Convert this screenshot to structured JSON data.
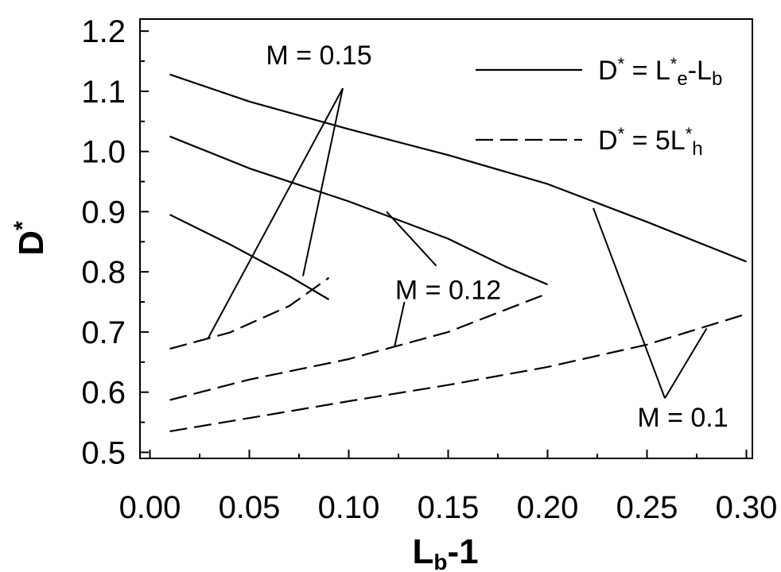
{
  "chart_data": {
    "type": "line",
    "title": "",
    "xlabel": {
      "main": "L",
      "sub": "b",
      "rest": "-1"
    },
    "ylabel": {
      "main": "D",
      "sup": "*"
    },
    "xlim": [
      -0.005,
      0.303
    ],
    "ylim": [
      0.49,
      1.22
    ],
    "xticks": [
      0.0,
      0.05,
      0.1,
      0.15,
      0.2,
      0.25,
      0.3
    ],
    "xtick_labels": [
      "0.00",
      "0.05",
      "0.10",
      "0.15",
      "0.20",
      "0.25",
      "0.30"
    ],
    "yticks": [
      0.5,
      0.6,
      0.7,
      0.8,
      0.9,
      1.0,
      1.1,
      1.2
    ],
    "ytick_labels": [
      "0.5",
      "0.6",
      "0.7",
      "0.8",
      "0.9",
      "1.0",
      "1.1",
      "1.2"
    ],
    "grid": false,
    "legend_position": "top-right",
    "legend": [
      {
        "style": "solid",
        "parts": [
          {
            "t": "D",
            "k": "n"
          },
          {
            "t": "*",
            "k": "sup"
          },
          {
            "t": " = L",
            "k": "n"
          },
          {
            "t": "*",
            "k": "sup"
          },
          {
            "t": "e",
            "k": "sub"
          },
          {
            "t": "-L",
            "k": "n"
          },
          {
            "t": "b",
            "k": "sub"
          }
        ]
      },
      {
        "style": "dashed",
        "parts": [
          {
            "t": "D",
            "k": "n"
          },
          {
            "t": "*",
            "k": "sup"
          },
          {
            "t": " = 5L",
            "k": "n"
          },
          {
            "t": "*",
            "k": "sup"
          },
          {
            "t": "h",
            "k": "sub"
          }
        ]
      }
    ],
    "series": [
      {
        "style": "solid",
        "group": "M = 0.1",
        "x": [
          0.01,
          0.05,
          0.1,
          0.15,
          0.2,
          0.25,
          0.3
        ],
        "y": [
          1.128,
          1.083,
          1.037,
          0.994,
          0.946,
          0.883,
          0.817
        ]
      },
      {
        "style": "solid",
        "group": "M = 0.12",
        "x": [
          0.01,
          0.05,
          0.1,
          0.15,
          0.18,
          0.2
        ],
        "y": [
          1.025,
          0.972,
          0.917,
          0.855,
          0.807,
          0.779
        ]
      },
      {
        "style": "solid",
        "group": "M = 0.15",
        "x": [
          0.01,
          0.04,
          0.07,
          0.09
        ],
        "y": [
          0.895,
          0.846,
          0.793,
          0.754
        ]
      },
      {
        "style": "dashed",
        "group": "M = 0.1",
        "x": [
          0.01,
          0.05,
          0.1,
          0.15,
          0.2,
          0.25,
          0.3
        ],
        "y": [
          0.535,
          0.557,
          0.585,
          0.612,
          0.642,
          0.679,
          0.73
        ]
      },
      {
        "style": "dashed",
        "group": "M = 0.12",
        "x": [
          0.01,
          0.05,
          0.1,
          0.15,
          0.2
        ],
        "y": [
          0.587,
          0.621,
          0.655,
          0.7,
          0.764
        ]
      },
      {
        "style": "dashed",
        "group": "M = 0.15",
        "x": [
          0.01,
          0.04,
          0.07,
          0.09
        ],
        "y": [
          0.672,
          0.699,
          0.743,
          0.79
        ]
      }
    ],
    "annotations": [
      {
        "text": "M = 0.15",
        "x": 0.085,
        "y": 1.145,
        "pointers": [
          {
            "from": [
              0.097,
              1.105
            ],
            "to": [
              0.029,
              0.688
            ]
          },
          {
            "from": [
              0.097,
              1.105
            ],
            "to": [
              0.077,
              0.793
            ]
          }
        ]
      },
      {
        "text": "M = 0.12",
        "x": 0.15,
        "y": 0.755,
        "pointers": [
          {
            "from": [
              0.144,
              0.81
            ],
            "to": [
              0.119,
              0.9
            ]
          },
          {
            "from": [
              0.128,
              0.75
            ],
            "to": [
              0.123,
              0.675
            ]
          }
        ]
      },
      {
        "text": "M = 0.1",
        "x": 0.268,
        "y": 0.543,
        "pointers": [
          {
            "from": [
              0.259,
              0.59
            ],
            "to": [
              0.223,
              0.906
            ]
          },
          {
            "from": [
              0.259,
              0.59
            ],
            "to": [
              0.28,
              0.706
            ]
          }
        ]
      }
    ],
    "colors": {
      "line": "#000000",
      "background": "#ffffff"
    }
  }
}
